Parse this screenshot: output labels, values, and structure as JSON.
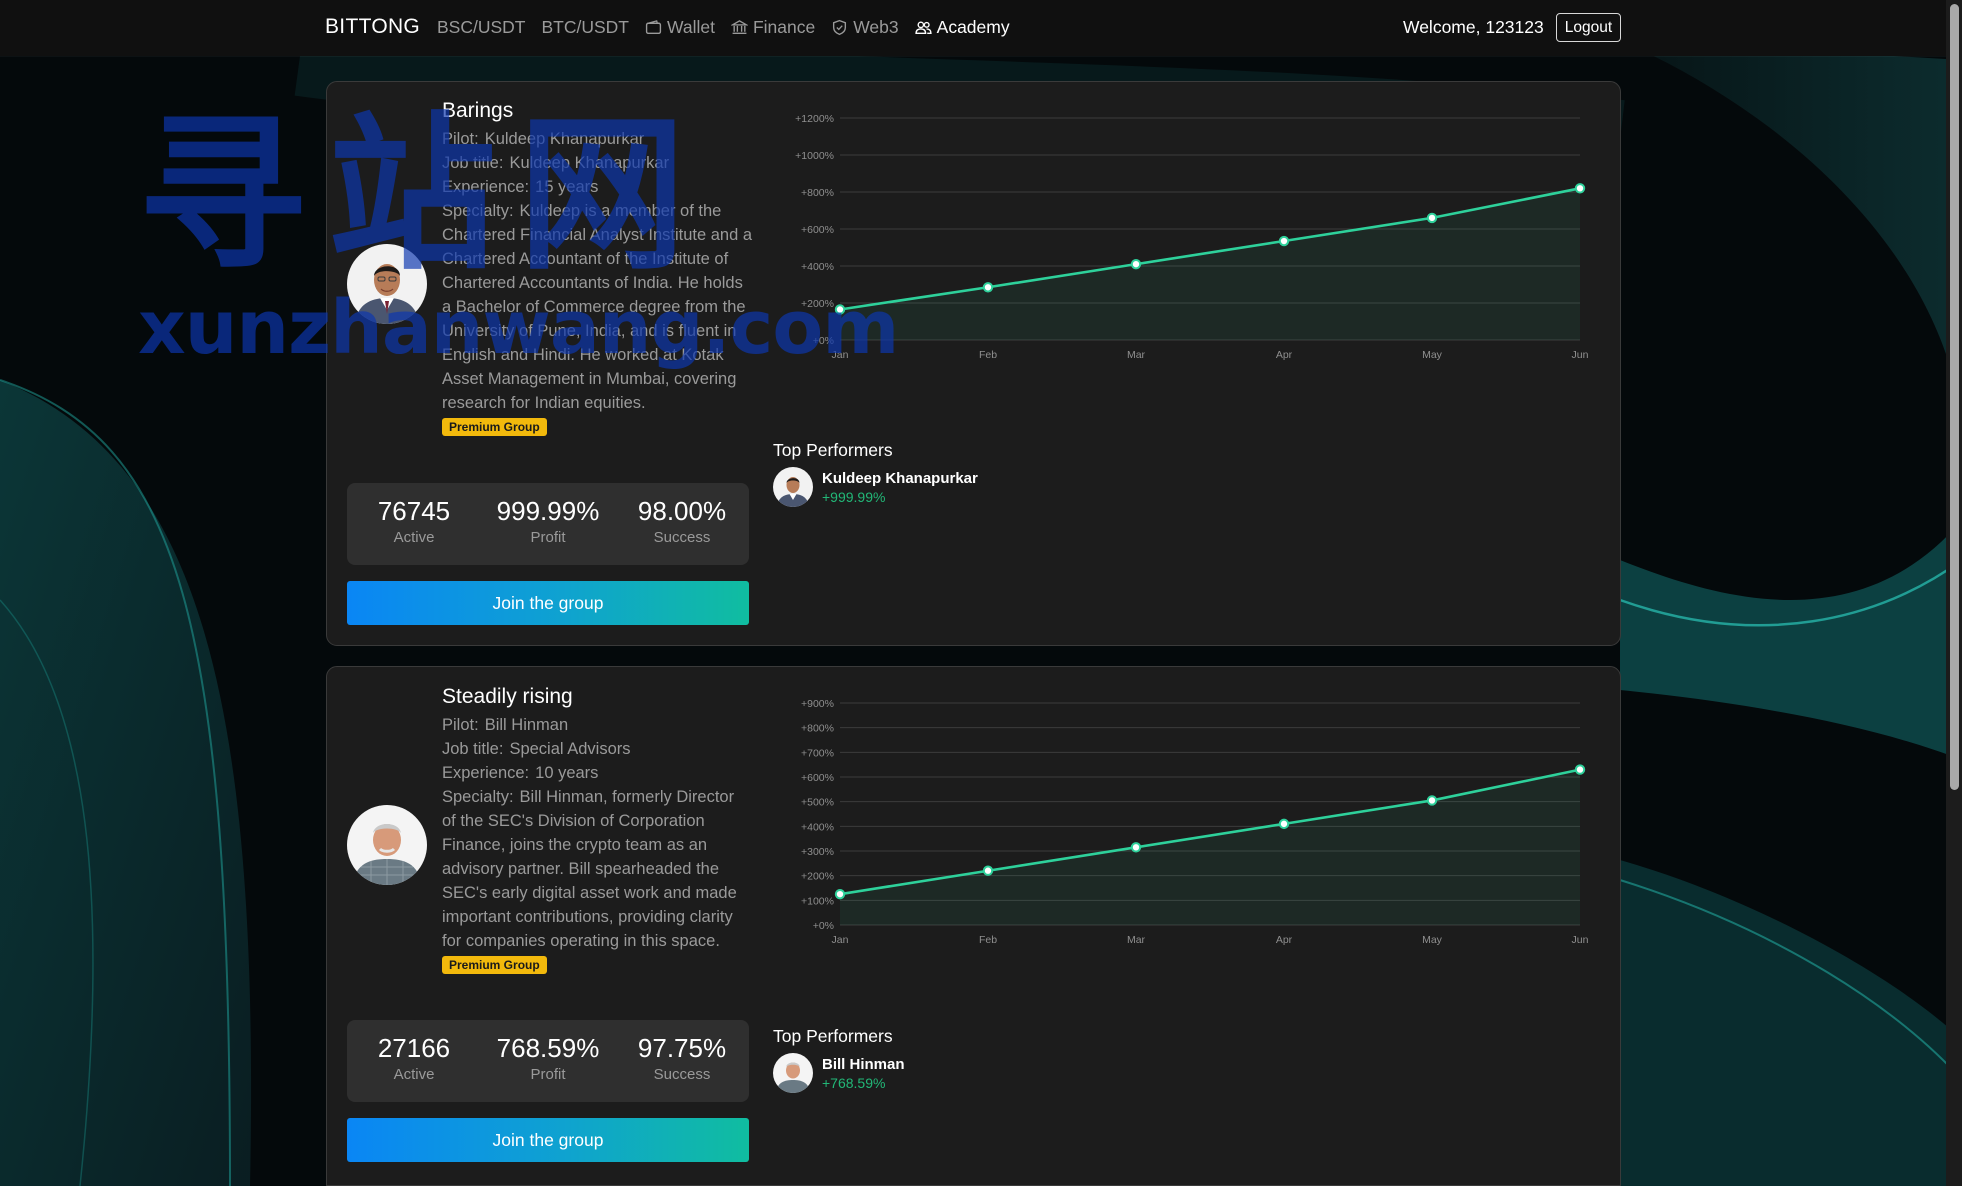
{
  "nav": {
    "brand": "BITTONG",
    "items": [
      {
        "label": "BSC/USDT",
        "icon": ""
      },
      {
        "label": "BTC/USDT",
        "icon": ""
      },
      {
        "label": "Wallet",
        "icon": "wallet-icon"
      },
      {
        "label": "Finance",
        "icon": "bank-icon"
      },
      {
        "label": "Web3",
        "icon": "shield-icon"
      },
      {
        "label": "Academy",
        "icon": "users-icon"
      }
    ],
    "active": "Academy",
    "welcome": "Welcome, 123123",
    "logout": "Logout"
  },
  "watermark": {
    "chars": "寻站网",
    "url": "xunzhanwang.com"
  },
  "groups": [
    {
      "title": "Barings",
      "pilot_label": "Pilot:",
      "pilot": "Kuldeep Khanapurkar",
      "job_label": "Job title:",
      "job": "Kuldeep Khanapurkar",
      "exp_label": "Experience:",
      "experience": "15 years",
      "spec_label": "Specialty:",
      "specialty": "Kuldeep is a member of the Chartered Financial Analyst Institute and a Chartered Accountant of the Institute of Chartered Accountants of India. He holds a Bachelor of Commerce degree from the University of Pune, India, and is fluent in English and Hindi. He worked at Kotak Asset Management in Mumbai, covering research for Indian equities.",
      "badge": "Premium Group",
      "stats": {
        "active": "76745",
        "active_label": "Active",
        "profit": "999.99%",
        "profit_label": "Profit",
        "success": "98.00%",
        "success_label": "Success"
      },
      "join": "Join the group",
      "top_title": "Top Performers",
      "top_name": "Kuldeep Khanapurkar",
      "top_profit": "+999.99%"
    },
    {
      "title": "Steadily rising",
      "pilot_label": "Pilot:",
      "pilot": "Bill Hinman",
      "job_label": "Job title:",
      "job": "Special Advisors",
      "exp_label": "Experience:",
      "experience": "10 years",
      "spec_label": "Specialty:",
      "specialty": "Bill Hinman, formerly Director of the SEC's Division of Corporation Finance, joins the crypto team as an advisory partner. Bill spearheaded the SEC's early digital asset work and made important contributions, providing clarity for companies operating in this space.",
      "badge": "Premium Group",
      "stats": {
        "active": "27166",
        "active_label": "Active",
        "profit": "768.59%",
        "profit_label": "Profit",
        "success": "97.75%",
        "success_label": "Success"
      },
      "join": "Join the group",
      "top_title": "Top Performers",
      "top_name": "Bill Hinman",
      "top_profit": "+768.59%"
    }
  ],
  "chart_data": [
    {
      "type": "area",
      "categories": [
        "Jan",
        "Feb",
        "Mar",
        "Apr",
        "May",
        "Jun"
      ],
      "values": [
        165,
        285,
        410,
        535,
        660,
        820
      ],
      "ylim": [
        0,
        1200
      ],
      "yticks": [
        0,
        200,
        400,
        600,
        800,
        1000,
        1200
      ],
      "ytick_labels": [
        "+0%",
        "+200%",
        "+400%",
        "+600%",
        "+800%",
        "+1000%",
        "+1200%"
      ],
      "grid": true,
      "color": "#2ed19b"
    },
    {
      "type": "area",
      "categories": [
        "Jan",
        "Feb",
        "Mar",
        "Apr",
        "May",
        "Jun"
      ],
      "values": [
        125,
        220,
        315,
        410,
        505,
        630
      ],
      "ylim": [
        0,
        900
      ],
      "yticks": [
        0,
        100,
        200,
        300,
        400,
        500,
        600,
        700,
        800,
        900
      ],
      "ytick_labels": [
        "+0%",
        "+100%",
        "+200%",
        "+300%",
        "+400%",
        "+500%",
        "+600%",
        "+700%",
        "+800%",
        "+900%"
      ],
      "grid": true,
      "color": "#2ed19b"
    }
  ]
}
